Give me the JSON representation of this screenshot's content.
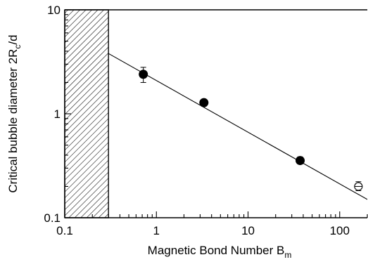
{
  "chart_data": {
    "type": "scatter",
    "title": "",
    "xlabel": {
      "main": "Magnetic Bond Number B",
      "sub": "m"
    },
    "ylabel": {
      "pre": "Critical bubble diameter 2R",
      "sub": "c",
      "post": "/d"
    },
    "x_scale": "log",
    "y_scale": "log",
    "xlim": [
      0.1,
      200
    ],
    "ylim": [
      0.1,
      10
    ],
    "x_ticks": [
      {
        "value": 0.1,
        "label": "0.1"
      },
      {
        "value": 1,
        "label": "1"
      },
      {
        "value": 10,
        "label": "10"
      },
      {
        "value": 100,
        "label": "100"
      }
    ],
    "y_ticks": [
      {
        "value": 0.1,
        "label": "0.1"
      },
      {
        "value": 1,
        "label": "1"
      },
      {
        "value": 10,
        "label": "10"
      }
    ],
    "excluded_region": {
      "x_from": 0.1,
      "x_to": 0.3,
      "pattern": "diagonal-hatch"
    },
    "fit_line": {
      "x_from": 0.3,
      "y_from": 3.8,
      "x_to": 200,
      "y_to": 0.15
    },
    "series": [
      {
        "marker": "filled-circle",
        "points": [
          {
            "x": 0.72,
            "y": 2.4,
            "err_low": 2.0,
            "err_high": 2.8
          },
          {
            "x": 3.3,
            "y": 1.28,
            "err_low": 1.22,
            "err_high": 1.34
          },
          {
            "x": 37,
            "y": 0.355,
            "err_low": 0.33,
            "err_high": 0.385
          }
        ]
      },
      {
        "marker": "open-circle-cross",
        "points": [
          {
            "x": 160,
            "y": 0.2,
            "err_low": 0.182,
            "err_high": 0.222
          }
        ]
      }
    ]
  }
}
